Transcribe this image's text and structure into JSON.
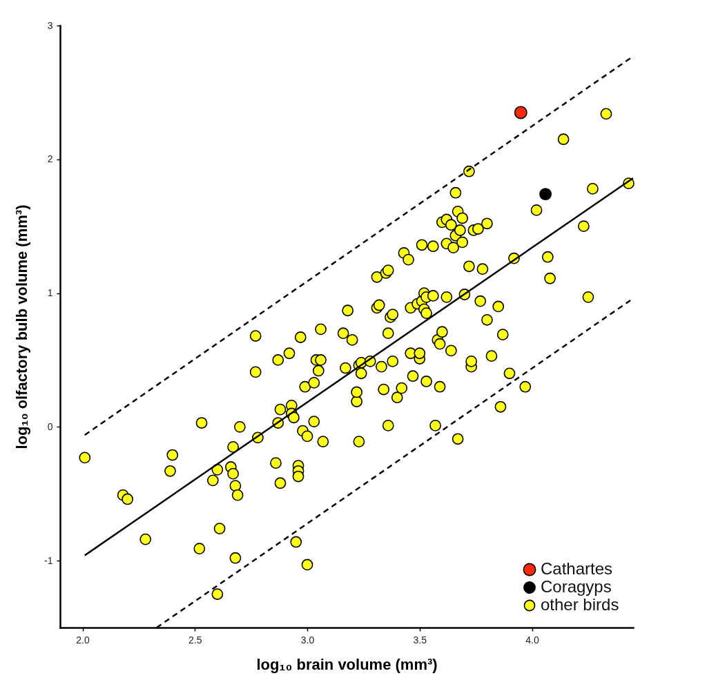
{
  "chart_data": {
    "type": "scatter",
    "xlabel": "log₁₀ brain volume (mm³)",
    "ylabel": "log₁₀ olfactory bulb volume (mm³)",
    "xlim": [
      1.9,
      4.45
    ],
    "ylim": [
      -1.5,
      3
    ],
    "xticks": [
      {
        "value": 2,
        "label": "2.0"
      },
      {
        "value": 2.5,
        "label": "2.5"
      },
      {
        "value": 3,
        "label": "3.0"
      },
      {
        "value": 3.5,
        "label": "3.5"
      },
      {
        "value": 4,
        "label": "4.0"
      }
    ],
    "yticks": [
      -1,
      0,
      1,
      2,
      3
    ],
    "grid": false,
    "legend": "bottom right",
    "series": [
      {
        "name": "Cathartes",
        "marker": "circle",
        "color": "#ff2a0a",
        "x": [
          3.95
        ],
        "values": [
          2.35
        ]
      },
      {
        "name": "Coragyps",
        "marker": "circle",
        "color": "#000000",
        "x": [
          4.06
        ],
        "values": [
          1.74
        ]
      },
      {
        "name": "other birds",
        "marker": "circle",
        "color": "#ffff1a",
        "x": [
          2.01,
          2.18,
          2.2,
          2.28,
          2.39,
          2.4,
          2.52,
          2.53,
          2.58,
          2.6,
          2.61,
          2.6,
          2.66,
          2.67,
          2.67,
          2.68,
          2.68,
          2.69,
          2.7,
          2.77,
          2.77,
          2.78,
          2.86,
          2.87,
          2.87,
          2.88,
          2.88,
          2.92,
          2.93,
          2.93,
          2.94,
          2.95,
          2.96,
          2.96,
          2.96,
          2.97,
          2.98,
          2.99,
          3.0,
          3.0,
          3.03,
          3.03,
          3.04,
          3.05,
          3.06,
          3.06,
          3.07,
          3.16,
          3.17,
          3.18,
          3.2,
          3.22,
          3.22,
          3.23,
          3.23,
          3.24,
          3.24,
          3.28,
          3.31,
          3.31,
          3.32,
          3.33,
          3.34,
          3.35,
          3.36,
          3.36,
          3.37,
          3.36,
          3.38,
          3.38,
          3.4,
          3.42,
          3.43,
          3.45,
          3.46,
          3.46,
          3.47,
          3.49,
          3.5,
          3.5,
          3.51,
          3.51,
          3.52,
          3.52,
          3.53,
          3.53,
          3.53,
          3.56,
          3.56,
          3.57,
          3.58,
          3.59,
          3.59,
          3.6,
          3.6,
          3.62,
          3.62,
          3.62,
          3.64,
          3.64,
          3.65,
          3.66,
          3.66,
          3.67,
          3.67,
          3.68,
          3.69,
          3.69,
          3.7,
          3.72,
          3.72,
          3.73,
          3.73,
          3.74,
          3.76,
          3.77,
          3.78,
          3.8,
          3.8,
          3.82,
          3.85,
          3.86,
          3.87,
          3.9,
          3.92,
          3.97,
          4.02,
          4.07,
          4.08,
          4.14,
          4.23,
          4.25,
          4.27,
          4.33,
          4.43
        ],
        "values": [
          -0.23,
          -0.51,
          -0.54,
          -0.84,
          -0.33,
          -0.21,
          -0.91,
          0.03,
          -0.4,
          -0.32,
          -0.76,
          -1.25,
          -0.3,
          -0.15,
          -0.35,
          -0.44,
          -0.98,
          -0.51,
          0.0,
          0.41,
          0.68,
          -0.08,
          -0.27,
          0.5,
          0.03,
          0.13,
          -0.42,
          0.55,
          0.16,
          0.1,
          0.07,
          -0.86,
          -0.29,
          -0.33,
          -0.37,
          0.67,
          -0.03,
          0.3,
          -0.07,
          -1.03,
          0.33,
          0.04,
          0.5,
          0.42,
          0.73,
          0.5,
          -0.11,
          0.7,
          0.44,
          0.87,
          0.65,
          0.19,
          0.26,
          -0.11,
          0.46,
          0.4,
          0.48,
          0.49,
          1.12,
          0.89,
          0.91,
          0.45,
          0.28,
          1.15,
          1.17,
          0.7,
          0.82,
          0.01,
          0.49,
          0.84,
          0.22,
          0.29,
          1.3,
          1.25,
          0.89,
          0.55,
          0.38,
          0.92,
          0.51,
          0.55,
          1.36,
          0.94,
          1.0,
          0.88,
          0.34,
          0.97,
          0.85,
          0.98,
          1.35,
          0.01,
          0.65,
          0.3,
          0.62,
          1.53,
          0.71,
          1.55,
          1.37,
          0.97,
          1.51,
          0.57,
          1.34,
          1.75,
          1.43,
          1.61,
          -0.09,
          1.47,
          1.56,
          1.38,
          0.99,
          1.91,
          1.2,
          0.45,
          0.49,
          1.47,
          1.48,
          0.94,
          1.18,
          1.52,
          0.8,
          0.53,
          0.9,
          0.15,
          0.69,
          0.4,
          1.26,
          0.3,
          1.62,
          1.27,
          1.11,
          2.15,
          1.5,
          0.97,
          1.78,
          2.34,
          1.82
        ]
      },
      {
        "type": "line",
        "color": "#000000",
        "line_style": "solid",
        "x": [
          2.01,
          4.45
        ],
        "values": [
          -0.96,
          1.86
        ]
      },
      {
        "type": "line",
        "color": "#000000",
        "line_style": "dashed",
        "x": [
          2.01,
          4.45
        ],
        "values": [
          -0.06,
          2.77
        ]
      },
      {
        "type": "line",
        "color": "#000000",
        "line_style": "dashed",
        "x": [
          2.33,
          4.45
        ],
        "values": [
          -1.5,
          0.96
        ]
      }
    ]
  }
}
